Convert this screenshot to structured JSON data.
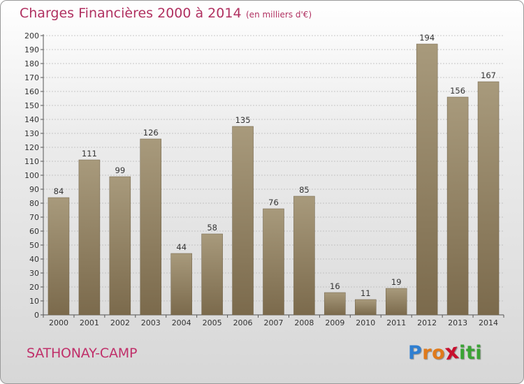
{
  "header": {
    "title": "Charges Financières 2000 à 2014",
    "subtitle": "(en milliers d'€)"
  },
  "footer": {
    "commune": "SATHONAY-CAMP",
    "logo_letters": [
      "P",
      "r",
      "o",
      "x",
      "i",
      "t",
      "i"
    ],
    "logo_colors": [
      "#2f7fd1",
      "#e07a1a",
      "#e07a1a",
      "#c8102e",
      "#3aa335",
      "#3aa335",
      "#3aa335"
    ]
  },
  "colors": {
    "bar_top": "#a89a7c",
    "bar_bottom": "#7b6a4c",
    "grid": "#b8b8b8",
    "title": "#b03060"
  },
  "chart_data": {
    "type": "bar",
    "categories": [
      "2000",
      "2001",
      "2002",
      "2003",
      "2004",
      "2005",
      "2006",
      "2007",
      "2008",
      "2009",
      "2010",
      "2011",
      "2012",
      "2013",
      "2014"
    ],
    "values": [
      84,
      111,
      99,
      126,
      44,
      58,
      135,
      76,
      85,
      16,
      11,
      19,
      194,
      156,
      167
    ],
    "title": "Charges Financières 2000 à 2014",
    "subtitle": "(en milliers d'€)",
    "ylim": [
      0,
      200
    ],
    "yticks": [
      0,
      10,
      20,
      30,
      40,
      50,
      60,
      70,
      80,
      90,
      100,
      110,
      120,
      130,
      140,
      150,
      160,
      170,
      180,
      190,
      200
    ],
    "grid": true,
    "data_labels": true
  }
}
